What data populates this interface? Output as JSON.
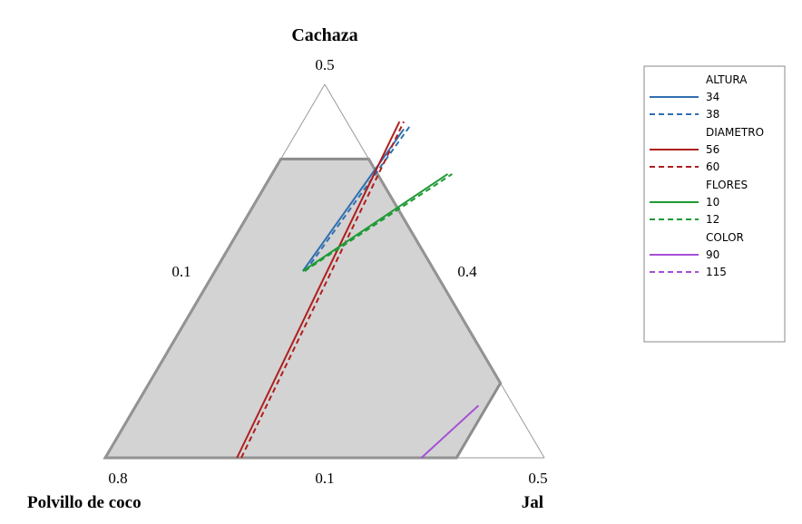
{
  "chart_data": {
    "type": "ternary_overlaid_contour",
    "vertices": {
      "top": {
        "name": "Cachaza",
        "value": "0.5"
      },
      "left": {
        "name": "Polvillo de coco",
        "value": "0.8"
      },
      "right": {
        "name": "Jal",
        "value": "0.5"
      }
    },
    "edge_ticks": {
      "left_edge": "0.1",
      "right_edge": "0.4",
      "bottom_edge": "0.1"
    },
    "feasible_region": {
      "bounds": {
        "Cachaza_max": 0.4,
        "Jal_max": 0.4
      },
      "fill": "#d3d3d3",
      "outline": "#8c8c8c"
    },
    "legend": [
      {
        "group": "ALTURA",
        "color": "#2f6fb0",
        "levels": [
          {
            "label": "34",
            "style": "solid"
          },
          {
            "label": "38",
            "style": "dashed"
          }
        ]
      },
      {
        "group": "DIAMETRO",
        "color": "#b01e1e",
        "levels": [
          {
            "label": "56",
            "style": "solid"
          },
          {
            "label": "60",
            "style": "dashed"
          }
        ]
      },
      {
        "group": "FLORES",
        "color": "#1e9a35",
        "levels": [
          {
            "label": "10",
            "style": "solid"
          },
          {
            "label": "12",
            "style": "dashed"
          }
        ]
      },
      {
        "group": "COLOR",
        "color": "#a64ed6",
        "levels": [
          {
            "label": "90",
            "style": "solid"
          },
          {
            "label": "115",
            "style": "dashed"
          }
        ]
      }
    ],
    "contours": [
      {
        "group": "ALTURA",
        "level": "34",
        "style": "solid",
        "color": "#2f6fb0",
        "points": [
          {
            "Cachaza": 0.25,
            "Jal": 0.1
          },
          {
            "Cachaza": 0.44,
            "Jal": 0.12
          }
        ]
      },
      {
        "group": "ALTURA",
        "level": "38",
        "style": "dashed",
        "color": "#2f6fb0",
        "points": [
          {
            "Cachaza": 0.25,
            "Jal": 0.103
          },
          {
            "Cachaza": 0.445,
            "Jal": 0.125
          }
        ]
      },
      {
        "group": "DIAMETRO",
        "level": "56",
        "style": "solid",
        "color": "#b01e1e",
        "points": [
          {
            "Cachaza": 0.0,
            "Jal": 0.15
          },
          {
            "Cachaza": 0.45,
            "Jal": 0.11
          }
        ]
      },
      {
        "group": "DIAMETRO",
        "level": "60",
        "style": "dashed",
        "color": "#b01e1e",
        "points": [
          {
            "Cachaza": 0.0,
            "Jal": 0.155
          },
          {
            "Cachaza": 0.45,
            "Jal": 0.115
          }
        ]
      },
      {
        "group": "FLORES",
        "level": "10",
        "style": "solid",
        "color": "#1e9a35",
        "points": [
          {
            "Cachaza": 0.25,
            "Jal": 0.1
          },
          {
            "Cachaza": 0.38,
            "Jal": 0.2
          }
        ]
      },
      {
        "group": "FLORES",
        "level": "12",
        "style": "dashed",
        "color": "#1e9a35",
        "points": [
          {
            "Cachaza": 0.25,
            "Jal": 0.102
          },
          {
            "Cachaza": 0.38,
            "Jal": 0.205
          }
        ]
      },
      {
        "group": "COLOR",
        "level": "90",
        "style": "solid",
        "color": "#a64ed6",
        "points": [
          {
            "Cachaza": 0.0,
            "Jal": 0.36
          },
          {
            "Cachaza": 0.07,
            "Jal": 0.39
          }
        ]
      }
    ]
  }
}
